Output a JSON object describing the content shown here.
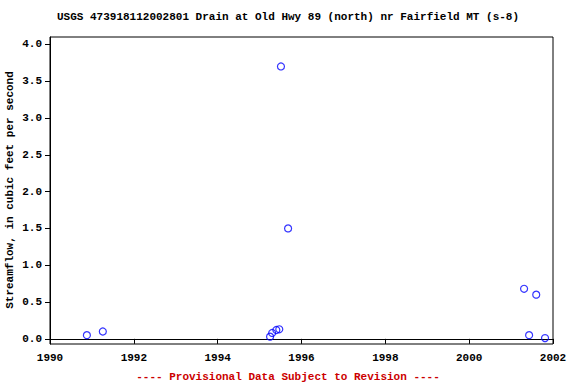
{
  "chart_data": {
    "type": "scatter",
    "title": "USGS 473918112002801 Drain at Old Hwy 89 (north) nr Fairfield MT (s-8)",
    "y_label": "Streamflow, in cubic feet per second",
    "annotation": "---- Provisional Data Subject to Revision ----",
    "x": [
      1990.88,
      1991.26,
      1995.25,
      1995.3,
      1995.4,
      1995.47,
      1995.51,
      1995.68,
      2001.31,
      2001.43,
      2001.6,
      2001.81
    ],
    "values": [
      0.05,
      0.1,
      0.03,
      0.08,
      0.12,
      0.13,
      3.7,
      1.5,
      0.68,
      0.05,
      0.6,
      0.01
    ],
    "color": "#0000ff",
    "marker": "circle",
    "xlim": [
      1990,
      2002
    ],
    "xticks": [
      1990,
      1992,
      1994,
      1996,
      1998,
      2000,
      2002
    ],
    "ylim": [
      -0.07,
      4.1
    ],
    "yticks": [
      {
        "value": 0,
        "label": "0.0"
      },
      {
        "value": 0.5,
        "label": "0.5"
      },
      {
        "value": 1,
        "label": "1.0"
      },
      {
        "value": 1.5,
        "label": "1.5"
      },
      {
        "value": 2,
        "label": "2.0"
      },
      {
        "value": 2.5,
        "label": "2.5"
      },
      {
        "value": 3,
        "label": "3.0"
      },
      {
        "value": 3.5,
        "label": "3.5"
      },
      {
        "value": 4,
        "label": "4.0"
      }
    ],
    "grid": false
  }
}
